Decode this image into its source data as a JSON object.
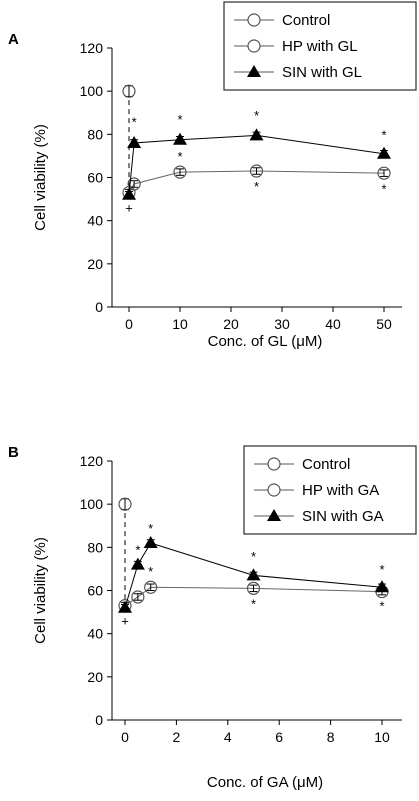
{
  "chart_data": [
    {
      "type": "line",
      "panel_label": "A",
      "xlabel": "Conc. of GL (μM)",
      "ylabel": "Cell viability (%)",
      "xlim": [
        -3,
        55
      ],
      "ylim": [
        0,
        120
      ],
      "x_ticks": [
        0,
        10,
        20,
        30,
        40,
        50
      ],
      "y_ticks": [
        0,
        20,
        40,
        60,
        80,
        100,
        120
      ],
      "legend_position": "top-right",
      "legend": [
        "Control",
        "HP with GL",
        "SIN with GL"
      ],
      "series": [
        {
          "name": "Control",
          "marker": "open-circle",
          "x": [
            0
          ],
          "y": [
            100
          ],
          "err": [
            2.5
          ]
        },
        {
          "name": "HP with GL",
          "marker": "open-circle",
          "x": [
            0,
            1,
            10,
            25,
            50
          ],
          "y": [
            53,
            57,
            62.5,
            63,
            62
          ],
          "err": [
            1.5,
            1.5,
            1.5,
            1.5,
            1.5
          ]
        },
        {
          "name": "SIN with GL",
          "marker": "filled-triangle",
          "x": [
            0,
            1,
            10,
            25,
            50
          ],
          "y": [
            52,
            76,
            77.5,
            79.5,
            71
          ],
          "err": [
            1.5,
            1.5,
            1.5,
            1.5,
            1.5
          ]
        }
      ],
      "control_drop_line": {
        "x": 0,
        "from": 100,
        "to": 53
      },
      "annotations": [
        {
          "text": "+",
          "x": 0,
          "y": 46
        },
        {
          "text": "*",
          "x": 1,
          "y": 86
        },
        {
          "text": "*",
          "x": 10,
          "y": 87
        },
        {
          "text": "*",
          "x": 10,
          "y": 70
        },
        {
          "text": "*",
          "x": 25,
          "y": 89
        },
        {
          "text": "*",
          "x": 25,
          "y": 56
        },
        {
          "text": "*",
          "x": 50,
          "y": 80
        },
        {
          "text": "*",
          "x": 50,
          "y": 55
        }
      ]
    },
    {
      "type": "line",
      "panel_label": "B",
      "xlabel": "Conc. of GA (μM)",
      "ylabel": "Cell viability (%)",
      "xlim": [
        -0.6,
        11
      ],
      "ylim": [
        0,
        120
      ],
      "x_ticks": [
        0,
        2,
        4,
        6,
        8,
        10
      ],
      "y_ticks": [
        0,
        20,
        40,
        60,
        80,
        100,
        120
      ],
      "legend_position": "top-right",
      "legend": [
        "Control",
        "HP with GA",
        "SIN with GA"
      ],
      "series": [
        {
          "name": "Control",
          "marker": "open-circle",
          "x": [
            0
          ],
          "y": [
            100
          ],
          "err": [
            2.5
          ]
        },
        {
          "name": "HP with GA",
          "marker": "open-circle",
          "x": [
            0,
            0.5,
            1,
            5,
            10
          ],
          "y": [
            53,
            57,
            61.5,
            61,
            59.5
          ],
          "err": [
            1.5,
            1.5,
            1.5,
            1.5,
            1.5
          ]
        },
        {
          "name": "SIN with GA",
          "marker": "filled-triangle",
          "x": [
            0,
            0.5,
            1,
            5,
            10
          ],
          "y": [
            52,
            72,
            82,
            67,
            61.5
          ],
          "err": [
            1.5,
            1.5,
            1.5,
            1.5,
            1.5
          ]
        }
      ],
      "control_drop_line": {
        "x": 0,
        "from": 100,
        "to": 53
      },
      "annotations": [
        {
          "text": "+",
          "x": 0,
          "y": 46
        },
        {
          "text": "*",
          "x": 0.5,
          "y": 79
        },
        {
          "text": "*",
          "x": 1,
          "y": 89
        },
        {
          "text": "*",
          "x": 1,
          "y": 69
        },
        {
          "text": "*",
          "x": 5,
          "y": 76
        },
        {
          "text": "*",
          "x": 5,
          "y": 54
        },
        {
          "text": "*",
          "x": 10,
          "y": 70
        },
        {
          "text": "*",
          "x": 10,
          "y": 53
        }
      ]
    }
  ]
}
